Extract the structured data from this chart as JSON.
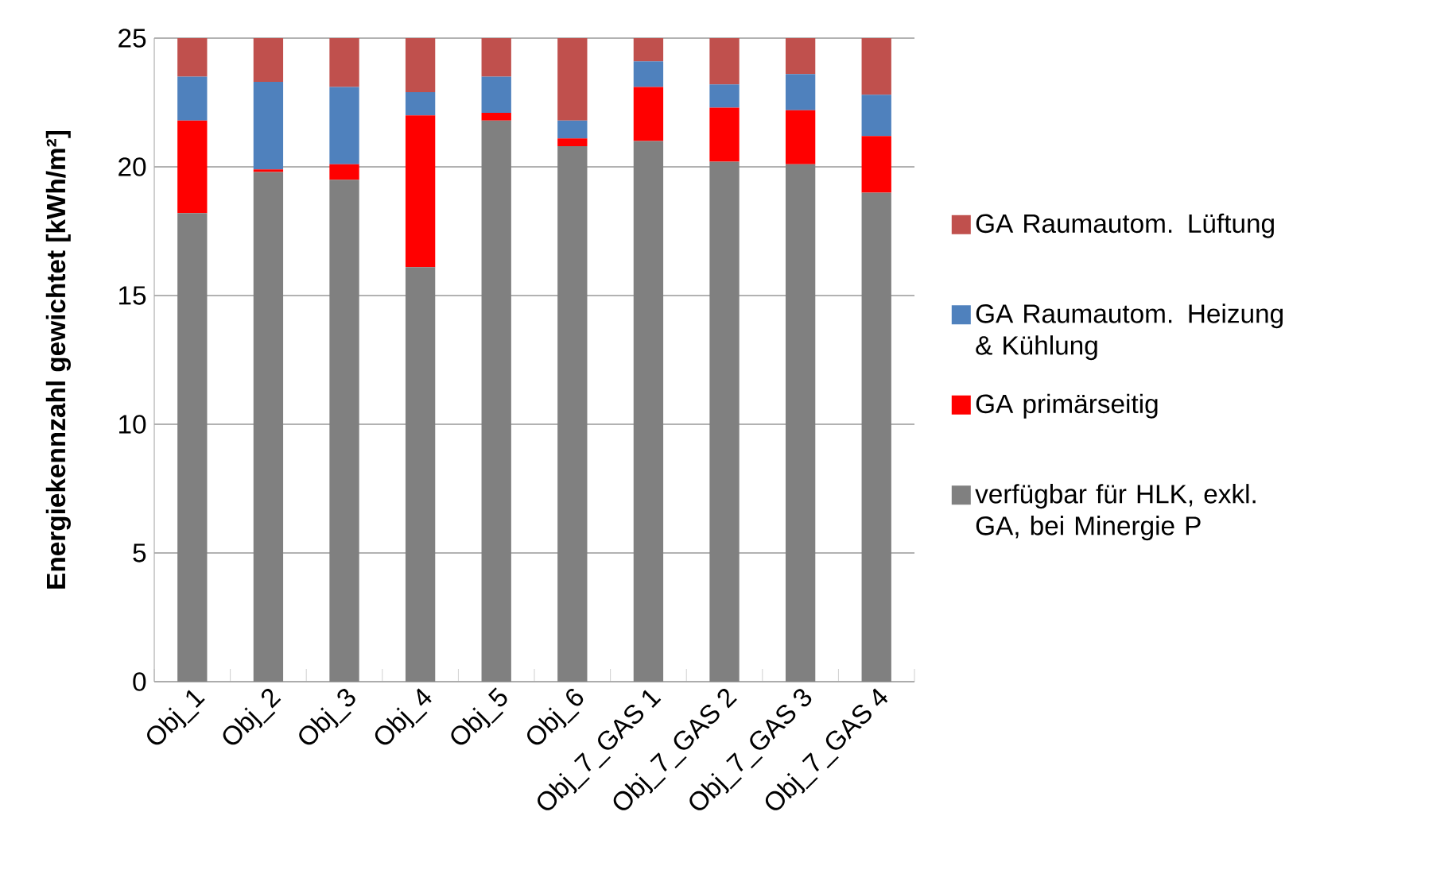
{
  "chart_data": {
    "type": "bar",
    "stacked": true,
    "ylabel": "Energiekennzahl gewichtet [kWh/m²]",
    "categories": [
      "Obj_1",
      "Obj_2",
      "Obj_3",
      "Obj_4",
      "Obj_5",
      "Obj_6",
      "Obj_7_GAS 1",
      "Obj_7_GAS 2",
      "Obj_7_GAS 3",
      "Obj_7_GAS 4"
    ],
    "series": [
      {
        "name": "verfügbar für HLK, exkl. GA, bei Minergie P",
        "color": "#808080",
        "values": [
          18.2,
          19.8,
          19.5,
          16.1,
          21.8,
          20.8,
          21.0,
          20.2,
          20.1,
          19.0
        ]
      },
      {
        "name": "GA primärseitig",
        "color": "#ff0000",
        "values": [
          3.6,
          0.1,
          0.6,
          5.9,
          0.3,
          0.3,
          2.1,
          2.1,
          2.1,
          2.2
        ]
      },
      {
        "name": "GA Raumautom. Heizung & Kühlung",
        "color": "#4f81bd",
        "values": [
          1.7,
          3.4,
          3.0,
          0.9,
          1.4,
          0.7,
          1.0,
          0.9,
          1.4,
          1.6
        ]
      },
      {
        "name": "GA Raumautom. Lüftung",
        "color": "#c0504d",
        "values": [
          1.5,
          1.7,
          1.9,
          2.1,
          1.5,
          3.2,
          0.9,
          1.8,
          1.4,
          2.2
        ]
      }
    ],
    "ylim": [
      0,
      25
    ],
    "yticks": [
      0,
      5,
      10,
      15,
      20,
      25
    ],
    "grid": "y",
    "legend": "right"
  }
}
